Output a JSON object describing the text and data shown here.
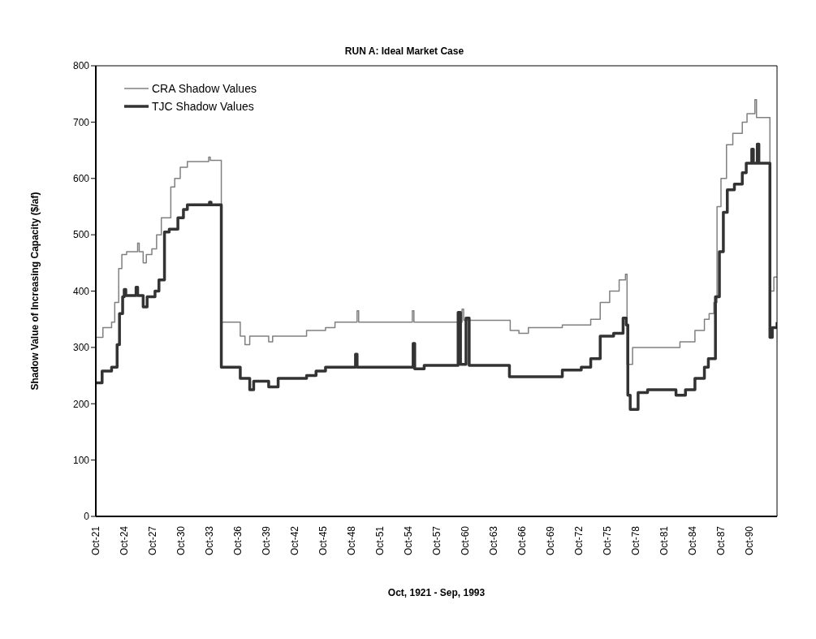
{
  "chart_data": {
    "type": "step",
    "title": "RUN A: Ideal Market Case",
    "xlabel": "Oct, 1921 - Sep, 1993",
    "ylabel": "Shadow Value of Increasing Capacity ($/af)",
    "xlim": [
      "1921-10",
      "1993-09"
    ],
    "xticks": [
      {
        "value": "1921-10",
        "label": "Oct-21"
      },
      {
        "value": "1924-10",
        "label": "Oct-24"
      },
      {
        "value": "1927-10",
        "label": "Oct-27"
      },
      {
        "value": "1930-10",
        "label": "Oct-30"
      },
      {
        "value": "1933-10",
        "label": "Oct-33"
      },
      {
        "value": "1936-10",
        "label": "Oct-36"
      },
      {
        "value": "1939-10",
        "label": "Oct-39"
      },
      {
        "value": "1942-10",
        "label": "Oct-42"
      },
      {
        "value": "1945-10",
        "label": "Oct-45"
      },
      {
        "value": "1948-10",
        "label": "Oct-48"
      },
      {
        "value": "1951-10",
        "label": "Oct-51"
      },
      {
        "value": "1954-10",
        "label": "Oct-54"
      },
      {
        "value": "1957-10",
        "label": "Oct-57"
      },
      {
        "value": "1960-10",
        "label": "Oct-60"
      },
      {
        "value": "1963-10",
        "label": "Oct-63"
      },
      {
        "value": "1966-10",
        "label": "Oct-66"
      },
      {
        "value": "1969-10",
        "label": "Oct-69"
      },
      {
        "value": "1972-10",
        "label": "Oct-72"
      },
      {
        "value": "1975-10",
        "label": "Oct-75"
      },
      {
        "value": "1978-10",
        "label": "Oct-78"
      },
      {
        "value": "1981-10",
        "label": "Oct-81"
      },
      {
        "value": "1984-10",
        "label": "Oct-84"
      },
      {
        "value": "1987-10",
        "label": "Oct-87"
      },
      {
        "value": "1990-10",
        "label": "Oct-90"
      }
    ],
    "ylim": [
      0,
      800
    ],
    "yticks": [
      0,
      100,
      200,
      300,
      400,
      500,
      600,
      700,
      800
    ],
    "grid": false,
    "legend": "top left",
    "line_style": "solid",
    "marker": "none",
    "series": [
      {
        "name": "CRA Shadow Values",
        "color": "#808080",
        "x": [
          "1921-10",
          "1922-07",
          "1923-06",
          "1923-10",
          "1924-03",
          "1924-07",
          "1925-01",
          "1926-03",
          "1926-05",
          "1926-10",
          "1927-02",
          "1927-09",
          "1928-03",
          "1928-09",
          "1929-09",
          "1930-02",
          "1930-09",
          "1931-06",
          "1933-09",
          "1933-11",
          "1935-01",
          "1937-01",
          "1937-07",
          "1938-01",
          "1940-01",
          "1940-06",
          "1942-06",
          "1944-01",
          "1946-01",
          "1947-01",
          "1949-05",
          "1949-07",
          "1955-03",
          "1955-05",
          "1960-06",
          "1960-08",
          "1965-07",
          "1966-06",
          "1967-06",
          "1971-01",
          "1974-01",
          "1975-01",
          "1976-01",
          "1977-01",
          "1977-09",
          "1977-11",
          "1978-06",
          "1981-06",
          "1983-06",
          "1985-01",
          "1986-01",
          "1986-07",
          "1987-01",
          "1987-05",
          "1987-10",
          "1988-05",
          "1989-01",
          "1990-01",
          "1990-07",
          "1991-05",
          "1991-07",
          "1992-12",
          "1993-05",
          "1993-09"
        ],
        "values": [
          318,
          335,
          345,
          380,
          440,
          465,
          470,
          485,
          470,
          450,
          465,
          475,
          500,
          530,
          585,
          600,
          620,
          630,
          638,
          632,
          345,
          320,
          305,
          320,
          310,
          320,
          320,
          330,
          335,
          345,
          365,
          345,
          365,
          345,
          368,
          348,
          330,
          325,
          335,
          340,
          350,
          380,
          400,
          420,
          430,
          270,
          300,
          300,
          310,
          330,
          350,
          360,
          380,
          550,
          600,
          660,
          680,
          700,
          715,
          740,
          708,
          400,
          425,
          425
        ]
      },
      {
        "name": "TJC Shadow Values",
        "color": "#333333",
        "x": [
          "1921-10",
          "1922-06",
          "1923-06",
          "1924-01",
          "1924-04",
          "1924-08",
          "1924-10",
          "1924-12",
          "1926-01",
          "1926-03",
          "1926-10",
          "1927-03",
          "1928-01",
          "1928-06",
          "1929-01",
          "1929-07",
          "1930-06",
          "1931-01",
          "1931-06",
          "1933-10",
          "1933-12",
          "1935-01",
          "1937-01",
          "1938-01",
          "1938-06",
          "1940-01",
          "1941-01",
          "1944-01",
          "1945-01",
          "1946-01",
          "1949-03",
          "1949-05",
          "1955-04",
          "1955-06",
          "1956-06",
          "1960-01",
          "1960-04",
          "1960-11",
          "1961-03",
          "1965-06",
          "1971-01",
          "1973-01",
          "1974-01",
          "1975-01",
          "1976-06",
          "1977-06",
          "1977-10",
          "1977-12",
          "1978-03",
          "1979-01",
          "1980-01",
          "1983-01",
          "1984-01",
          "1985-01",
          "1986-01",
          "1986-06",
          "1987-03",
          "1987-08",
          "1988-01",
          "1988-06",
          "1989-03",
          "1990-01",
          "1990-06",
          "1991-01",
          "1991-03",
          "1991-08",
          "1991-10",
          "1992-12",
          "1993-03",
          "1993-09"
        ],
        "values": [
          237,
          258,
          265,
          305,
          360,
          390,
          403,
          392,
          407,
          392,
          372,
          390,
          400,
          420,
          505,
          510,
          530,
          545,
          553,
          558,
          553,
          265,
          245,
          225,
          240,
          230,
          245,
          250,
          258,
          265,
          288,
          265,
          307,
          262,
          268,
          362,
          270,
          352,
          268,
          248,
          260,
          265,
          280,
          320,
          325,
          352,
          340,
          215,
          190,
          220,
          225,
          215,
          225,
          245,
          265,
          280,
          390,
          470,
          540,
          580,
          590,
          610,
          627,
          652,
          627,
          661,
          627,
          318,
          335,
          345
        ]
      }
    ]
  }
}
